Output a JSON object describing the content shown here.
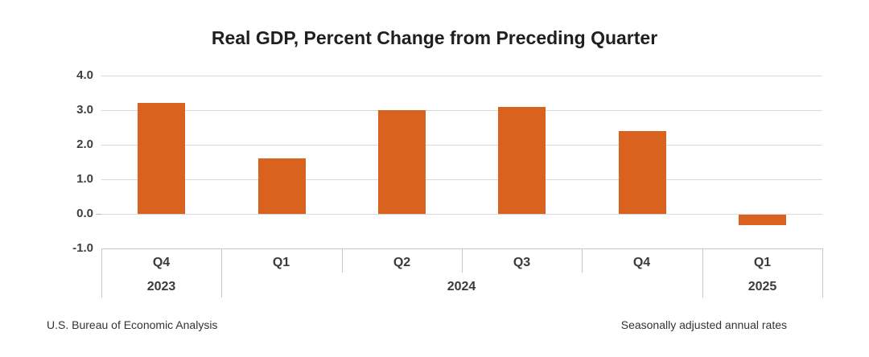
{
  "title": "Real GDP, Percent Change from Preceding Quarter",
  "footer": {
    "left": "U.S. Bureau of Economic Analysis",
    "right": "Seasonally adjusted annual rates"
  },
  "colors": {
    "bar": "#D9621F",
    "gridline": "#D9D9D9",
    "zero_tick": "#B8B8B8",
    "axis_border": "#C6C6C6",
    "title_text": "#1F1F1F",
    "label_text": "#3A3A3A",
    "footer_text": "#333333"
  },
  "chart_data": {
    "type": "bar",
    "title": "Real GDP, Percent Change from Preceding Quarter",
    "categories": [
      "Q4",
      "Q1",
      "Q2",
      "Q3",
      "Q4",
      "Q1"
    ],
    "values": [
      3.2,
      1.6,
      3.0,
      3.1,
      2.4,
      -0.3
    ],
    "year_groups": [
      {
        "label": "2023",
        "span": 1
      },
      {
        "label": "2024",
        "span": 4
      },
      {
        "label": "2025",
        "span": 1
      }
    ],
    "y_ticks": [
      {
        "label": "4.0",
        "value": 4.0
      },
      {
        "label": "3.0",
        "value": 3.0
      },
      {
        "label": "2.0",
        "value": 2.0
      },
      {
        "label": "1.0",
        "value": 1.0
      },
      {
        "label": "0.0",
        "value": 0.0
      },
      {
        "label": "-1.0",
        "value": -1.0
      }
    ],
    "ylim": [
      -1.0,
      4.0
    ],
    "xlabel": "",
    "ylabel": "",
    "grid": true,
    "legend": false,
    "annotations": [
      "U.S. Bureau of Economic Analysis",
      "Seasonally adjusted annual rates"
    ]
  }
}
